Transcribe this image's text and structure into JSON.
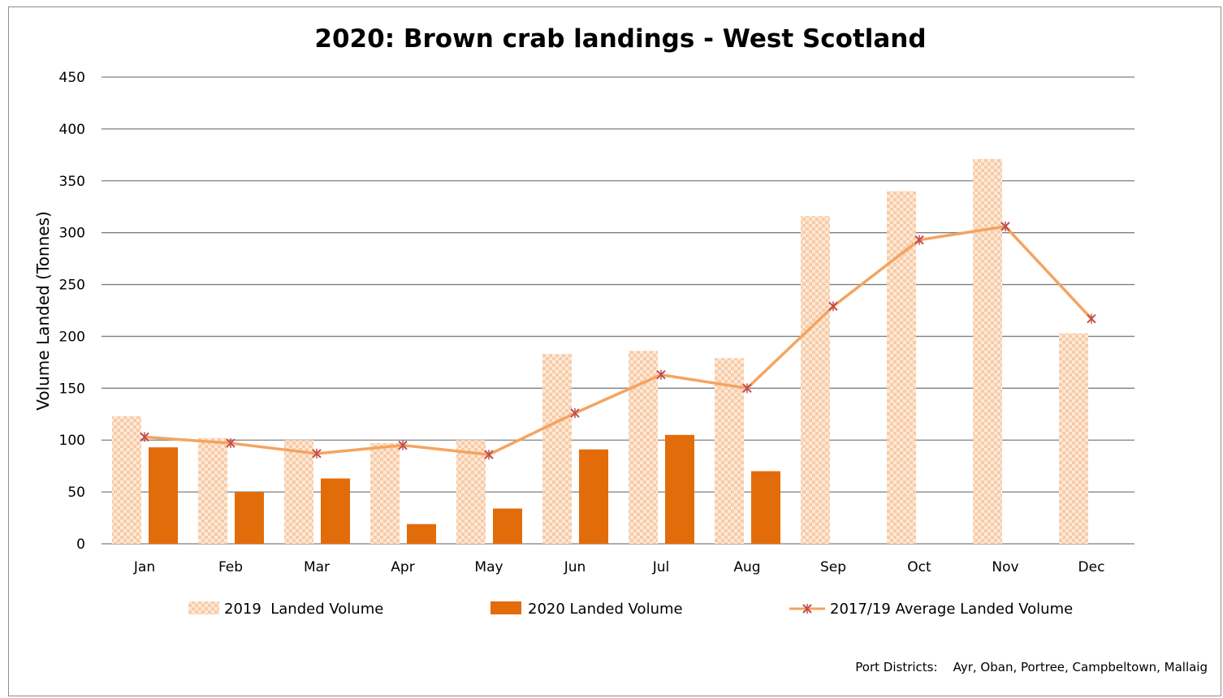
{
  "chart_data": {
    "type": "bar",
    "title": "2020: Brown crab landings - West Scotland",
    "ylabel": "Volume Landed (Tonnes)",
    "xlabel": "",
    "ylim": [
      0,
      450
    ],
    "yticks": [
      0,
      50,
      100,
      150,
      200,
      250,
      300,
      350,
      400,
      450
    ],
    "grid": true,
    "legend_position": "bottom",
    "categories": [
      "Jan",
      "Feb",
      "Mar",
      "Apr",
      "May",
      "Jun",
      "Jul",
      "Aug",
      "Sep",
      "Oct",
      "Nov",
      "Dec"
    ],
    "series": [
      {
        "name": "2019  Landed Volume",
        "type": "bar",
        "pattern": "checkered",
        "color": "#f8cba6",
        "values": [
          123,
          102,
          100,
          97,
          100,
          183,
          186,
          179,
          316,
          340,
          371,
          203
        ]
      },
      {
        "name": "2020 Landed Volume",
        "type": "bar",
        "color": "#e36c0a",
        "values": [
          93,
          50,
          63,
          19,
          34,
          91,
          105,
          70,
          null,
          null,
          null,
          null
        ]
      },
      {
        "name": "2017/19 Average Landed Volume",
        "type": "line",
        "marker": "star",
        "color": "#f4a460",
        "marker_color": "#c0504d",
        "values": [
          103,
          97,
          87,
          95,
          86,
          126,
          163,
          150,
          229,
          293,
          306,
          217
        ]
      }
    ],
    "footnote": "Port Districts:    Ayr, Oban, Portree, Campbeltown, Mallaig"
  }
}
